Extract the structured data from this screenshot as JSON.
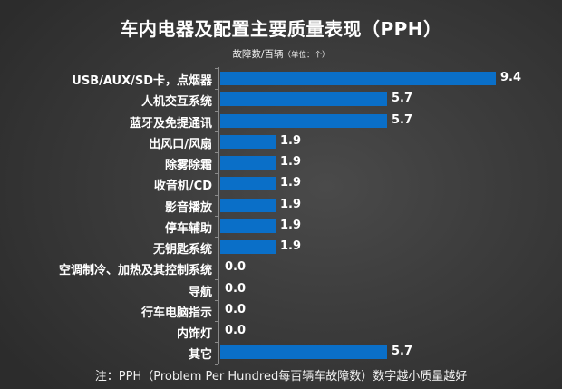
{
  "chart_data": {
    "type": "bar",
    "orientation": "horizontal",
    "title": "车内电器及配置主要质量表现（PPH）",
    "subtitle": "故障数/百辆",
    "subtitle_unit": "（单位：个）",
    "xlabel": "",
    "ylabel": "",
    "categories": [
      "USB/AUX/SD卡，点烟器",
      "人机交互系统",
      "蓝牙及免提通讯",
      "出风口/风扇",
      "除雾除霜",
      "收音机/CD",
      "影音播放",
      "停车辅助",
      "无钥匙系统",
      "空调制冷、加热及其控制系统",
      "导航",
      "行车电脑指示",
      "内饰灯",
      "其它"
    ],
    "values": [
      9.4,
      5.7,
      5.7,
      1.9,
      1.9,
      1.9,
      1.9,
      1.9,
      1.9,
      0.0,
      0.0,
      0.0,
      0.0,
      5.7
    ],
    "value_labels": [
      "9.4",
      "5.7",
      "5.7",
      "1.9",
      "1.9",
      "1.9",
      "1.9",
      "1.9",
      "1.9",
      "0.0",
      "0.0",
      "0.0",
      "0.0",
      "5.7"
    ],
    "xlim": [
      0,
      9.4
    ],
    "grid": false,
    "legend": null,
    "bar_color": "#0a6fc8",
    "annotation": "注：PPH（Problem Per Hundred每百辆车故障数）数字越小质量越好"
  }
}
